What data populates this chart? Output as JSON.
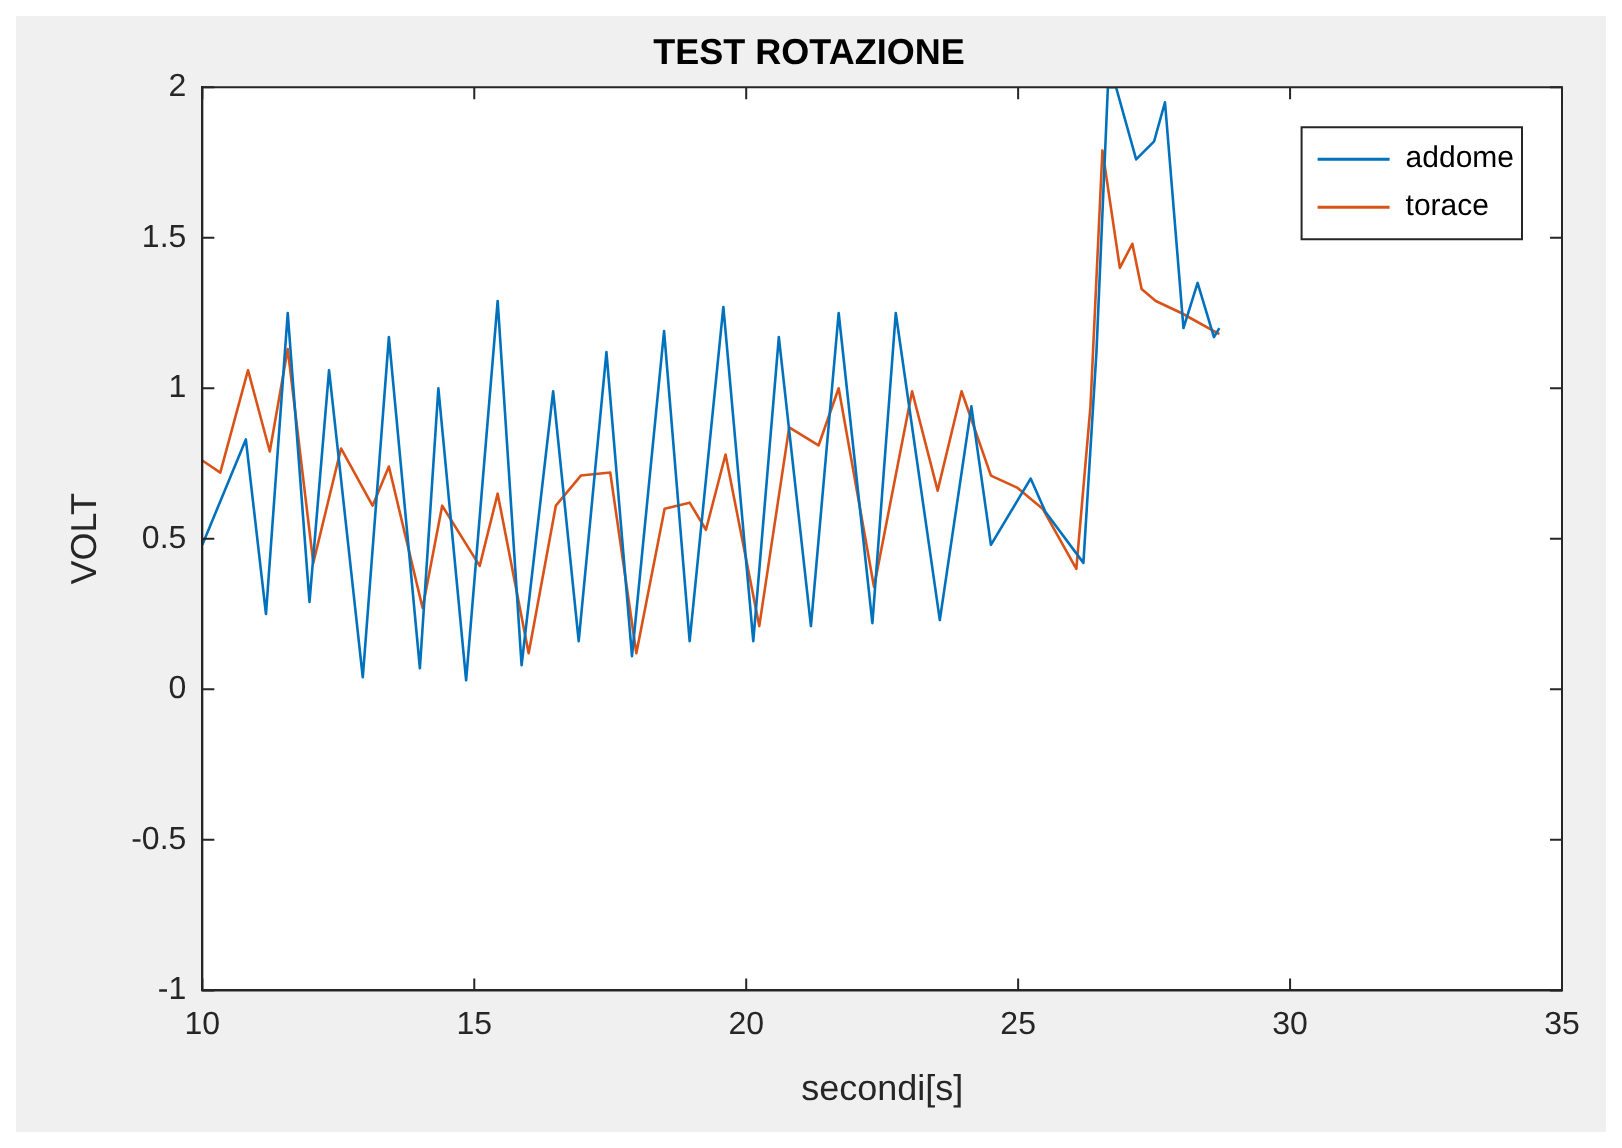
{
  "chart_data": {
    "type": "line",
    "title": "TEST ROTAZIONE",
    "xlabel": "secondi[s]",
    "ylabel": "VOLT",
    "xlim": [
      10,
      35
    ],
    "xticks": [
      10,
      15,
      20,
      25,
      30,
      35
    ],
    "ylim": [
      -1,
      2
    ],
    "yticks": [
      -1,
      -0.5,
      0,
      0.5,
      1,
      1.5,
      2
    ],
    "grid": false,
    "legend": "top right",
    "marker": "none",
    "line_style": "solid",
    "series": [
      {
        "name": "addome",
        "color": "#0072bd",
        "x": [
          10,
          10.8,
          11.17,
          11.57,
          11.97,
          12.33,
          12.95,
          13.43,
          14.0,
          14.34,
          14.85,
          15.43,
          15.87,
          16.45,
          16.92,
          17.43,
          17.9,
          18.49,
          18.96,
          19.58,
          20.13,
          20.6,
          21.19,
          21.7,
          22.32,
          22.75,
          23.56,
          24.14,
          24.5,
          25.23,
          25.5,
          26.2,
          26.44,
          26.65,
          26.8,
          27.17,
          27.5,
          27.7,
          28.04,
          28.3,
          28.6,
          28.7
        ],
        "values": [
          0.48,
          0.83,
          0.25,
          1.25,
          0.29,
          1.06,
          0.04,
          1.17,
          0.07,
          1.0,
          0.03,
          1.29,
          0.08,
          0.99,
          0.16,
          1.12,
          0.11,
          1.19,
          0.16,
          1.27,
          0.16,
          1.17,
          0.21,
          1.25,
          0.22,
          1.25,
          0.23,
          0.94,
          0.48,
          0.7,
          0.59,
          0.42,
          1.12,
          2.0,
          2.0,
          1.76,
          1.82,
          1.95,
          1.2,
          1.35,
          1.17,
          1.2
        ]
      },
      {
        "name": "torace",
        "color": "#d95319",
        "x": [
          10,
          10.33,
          10.84,
          11.24,
          11.57,
          12.04,
          12.55,
          13.13,
          13.43,
          14.05,
          14.41,
          15.1,
          15.43,
          16.0,
          16.5,
          16.96,
          17.5,
          17.98,
          18.5,
          18.96,
          19.26,
          19.62,
          20.24,
          20.79,
          21.33,
          21.7,
          22.35,
          23.05,
          23.52,
          23.96,
          24.5,
          24.98,
          25.45,
          26.07,
          26.33,
          26.55,
          26.87,
          27.1,
          27.27,
          27.53,
          28.0,
          28.7
        ],
        "values": [
          0.76,
          0.72,
          1.06,
          0.79,
          1.13,
          0.42,
          0.8,
          0.61,
          0.74,
          0.27,
          0.61,
          0.41,
          0.65,
          0.12,
          0.61,
          0.71,
          0.72,
          0.12,
          0.6,
          0.62,
          0.53,
          0.78,
          0.21,
          0.87,
          0.81,
          1.0,
          0.34,
          0.99,
          0.66,
          0.99,
          0.71,
          0.67,
          0.6,
          0.4,
          0.94,
          1.79,
          1.4,
          1.48,
          1.33,
          1.29,
          1.25,
          1.18
        ]
      }
    ]
  }
}
